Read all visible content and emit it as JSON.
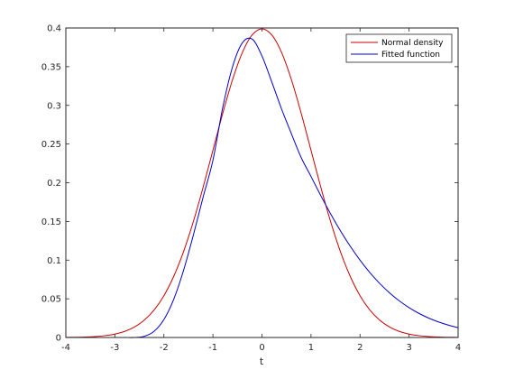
{
  "chart_data": {
    "type": "line",
    "title": "",
    "xlabel": "t",
    "ylabel": "",
    "xlim": [
      -4,
      4
    ],
    "ylim": [
      0,
      0.4
    ],
    "xticks": [
      "-4",
      "-3",
      "-2",
      "-1",
      "0",
      "1",
      "2",
      "3",
      "4"
    ],
    "yticks": [
      "0",
      "0.05",
      "0.1",
      "0.15",
      "0.2",
      "0.25",
      "0.3",
      "0.35",
      "0.4"
    ],
    "grid": false,
    "legend_position": "top-right",
    "series": [
      {
        "name": "Normal density",
        "color": "#cc0000",
        "x": [
          -4,
          -3.8,
          -3.6,
          -3.4,
          -3.2,
          -3.0,
          -2.8,
          -2.6,
          -2.4,
          -2.2,
          -2.0,
          -1.8,
          -1.6,
          -1.4,
          -1.2,
          -1.0,
          -0.8,
          -0.6,
          -0.4,
          -0.2,
          0.0,
          0.2,
          0.4,
          0.6,
          0.8,
          1.0,
          1.2,
          1.4,
          1.6,
          1.8,
          2.0,
          2.2,
          2.4,
          2.6,
          2.8,
          3.0,
          3.2,
          3.4,
          3.6,
          3.8,
          4.0
        ],
        "y": [
          0.0001,
          0.0003,
          0.0006,
          0.0012,
          0.0024,
          0.0044,
          0.0079,
          0.0136,
          0.0224,
          0.0355,
          0.054,
          0.079,
          0.1109,
          0.1497,
          0.1942,
          0.242,
          0.2897,
          0.3332,
          0.3683,
          0.391,
          0.3989,
          0.391,
          0.3683,
          0.3332,
          0.2897,
          0.242,
          0.1942,
          0.1497,
          0.1109,
          0.079,
          0.054,
          0.0355,
          0.0224,
          0.0136,
          0.0079,
          0.0044,
          0.0024,
          0.0012,
          0.0006,
          0.0003,
          0.0001
        ]
      },
      {
        "name": "Fitted function",
        "color": "#0000cc",
        "x": [
          -4,
          -3.8,
          -3.6,
          -3.4,
          -3.2,
          -3.0,
          -2.8,
          -2.6,
          -2.4,
          -2.2,
          -2.0,
          -1.8,
          -1.6,
          -1.4,
          -1.2,
          -1.0,
          -0.8,
          -0.6,
          -0.4,
          -0.2,
          0.0,
          0.2,
          0.4,
          0.6,
          0.8,
          1.0,
          1.2,
          1.4,
          1.6,
          1.8,
          2.0,
          2.2,
          2.4,
          2.6,
          2.8,
          3.0,
          3.2,
          3.4,
          3.6,
          3.8,
          4.0
        ],
        "y": [
          0.0,
          0.0,
          0.0,
          0.0,
          0.0,
          0.0,
          0.0,
          0.0,
          0.0015,
          0.008,
          0.0232,
          0.0494,
          0.0866,
          0.1322,
          0.1815,
          0.2291,
          0.2972,
          0.3499,
          0.3808,
          0.3856,
          0.3638,
          0.3302,
          0.2952,
          0.2633,
          0.2325,
          0.2081,
          0.1833,
          0.1598,
          0.1379,
          0.1179,
          0.0999,
          0.0839,
          0.0699,
          0.0578,
          0.0474,
          0.0386,
          0.0312,
          0.0251,
          0.0201,
          0.016,
          0.0127
        ]
      }
    ]
  }
}
